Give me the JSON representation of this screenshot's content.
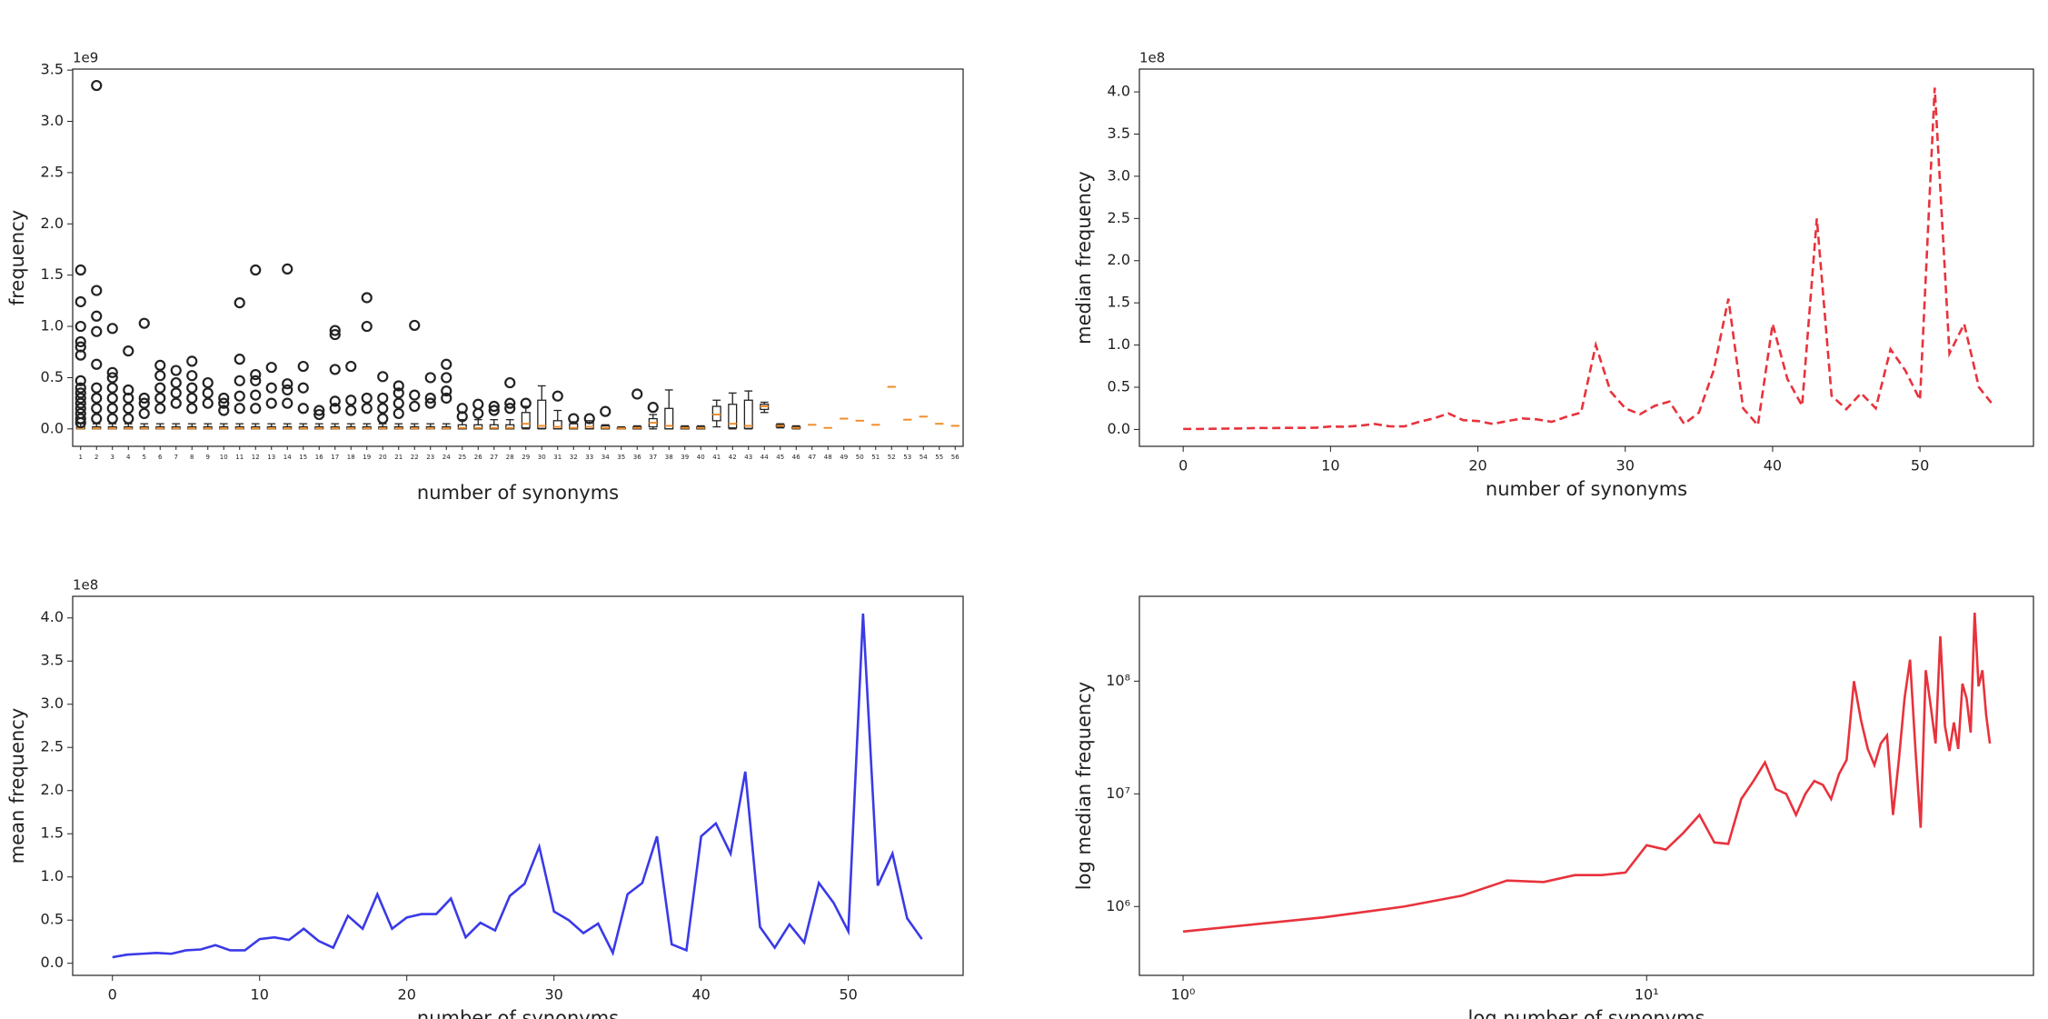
{
  "chart_data": [
    {
      "type": "box",
      "offset_label": "1e9",
      "ylabel": "frequency",
      "xlabel": "number of synonyms",
      "categories": [
        1,
        2,
        3,
        4,
        5,
        6,
        7,
        8,
        9,
        10,
        11,
        12,
        13,
        14,
        15,
        16,
        17,
        18,
        19,
        20,
        21,
        22,
        23,
        24,
        25,
        26,
        27,
        28,
        29,
        30,
        31,
        32,
        33,
        34,
        35,
        36,
        37,
        38,
        39,
        40,
        41,
        42,
        43,
        44,
        45,
        46,
        47,
        48,
        49,
        50,
        51,
        52,
        53,
        54,
        55,
        56
      ],
      "q1": [
        0,
        0,
        0,
        0,
        0,
        0,
        0,
        0,
        0,
        0,
        0,
        0,
        0,
        0,
        0,
        0,
        0,
        0,
        0,
        0,
        0,
        0,
        0,
        0,
        0,
        0,
        0,
        0,
        0.01,
        0.005,
        0,
        0,
        0,
        0,
        0,
        0,
        0.02,
        0,
        0,
        0,
        0.08,
        0.01,
        0.005,
        0.19,
        0.02,
        0.005,
        0.04,
        0.01,
        0.1,
        0.08,
        0.04,
        0.41,
        0.09,
        0.12,
        0.05,
        0.03
      ],
      "median": [
        0.005,
        0.005,
        0.005,
        0.005,
        0.005,
        0.005,
        0.005,
        0.005,
        0.005,
        0.005,
        0.005,
        0.005,
        0.005,
        0.005,
        0.005,
        0.005,
        0.005,
        0.005,
        0.005,
        0.005,
        0.005,
        0.005,
        0.005,
        0.005,
        0.01,
        0.01,
        0.01,
        0.01,
        0.05,
        0.03,
        0.02,
        0.01,
        0.02,
        0.01,
        0.005,
        0.01,
        0.06,
        0.03,
        0.01,
        0.01,
        0.14,
        0.05,
        0.03,
        0.22,
        0.03,
        0.01,
        0.04,
        0.01,
        0.1,
        0.08,
        0.04,
        0.41,
        0.09,
        0.12,
        0.05,
        0.03
      ],
      "q3": [
        0.02,
        0.02,
        0.02,
        0.02,
        0.02,
        0.02,
        0.02,
        0.02,
        0.02,
        0.02,
        0.02,
        0.02,
        0.02,
        0.02,
        0.02,
        0.02,
        0.02,
        0.02,
        0.02,
        0.02,
        0.02,
        0.02,
        0.02,
        0.02,
        0.04,
        0.04,
        0.04,
        0.04,
        0.16,
        0.28,
        0.08,
        0.05,
        0.06,
        0.03,
        0.01,
        0.02,
        0.1,
        0.2,
        0.02,
        0.02,
        0.22,
        0.24,
        0.28,
        0.24,
        0.04,
        0.02,
        0.04,
        0.01,
        0.1,
        0.08,
        0.04,
        0.41,
        0.09,
        0.12,
        0.05,
        0.03
      ],
      "whislo": [
        0,
        0,
        0,
        0,
        0,
        0,
        0,
        0,
        0,
        0,
        0,
        0,
        0,
        0,
        0,
        0,
        0,
        0,
        0,
        0,
        0,
        0,
        0,
        0,
        0,
        0,
        0,
        0,
        0,
        0,
        0,
        0,
        0,
        0,
        0,
        0,
        0,
        0,
        0,
        0,
        0.02,
        0,
        0,
        0.16,
        0.01,
        0,
        0.04,
        0.01,
        0.1,
        0.08,
        0.04,
        0.41,
        0.09,
        0.12,
        0.05,
        0.03
      ],
      "whishi": [
        0.05,
        0.05,
        0.05,
        0.05,
        0.05,
        0.05,
        0.05,
        0.05,
        0.05,
        0.05,
        0.05,
        0.05,
        0.05,
        0.05,
        0.05,
        0.05,
        0.05,
        0.05,
        0.05,
        0.05,
        0.05,
        0.05,
        0.05,
        0.05,
        0.09,
        0.09,
        0.09,
        0.09,
        0.22,
        0.42,
        0.18,
        0.07,
        0.08,
        0.04,
        0.02,
        0.03,
        0.14,
        0.38,
        0.03,
        0.03,
        0.28,
        0.35,
        0.37,
        0.26,
        0.05,
        0.03,
        0.04,
        0.01,
        0.1,
        0.08,
        0.04,
        0.41,
        0.09,
        0.12,
        0.05,
        0.03
      ],
      "fliers": [
        [
          1.55,
          1.24,
          1.0,
          0.85,
          0.8,
          0.72,
          0.47,
          0.4,
          0.35,
          0.3,
          0.25,
          0.2,
          0.15,
          0.1,
          0.06
        ],
        [
          3.35,
          1.35,
          1.1,
          0.95,
          0.63,
          0.4,
          0.3,
          0.2,
          0.1
        ],
        [
          0.98,
          0.55,
          0.5,
          0.4,
          0.3,
          0.2,
          0.1
        ],
        [
          0.76,
          0.38,
          0.3,
          0.2,
          0.1
        ],
        [
          1.03,
          0.3,
          0.25,
          0.15
        ],
        [
          0.62,
          0.52,
          0.4,
          0.3,
          0.2
        ],
        [
          0.57,
          0.45,
          0.35,
          0.25
        ],
        [
          0.66,
          0.52,
          0.4,
          0.3,
          0.2
        ],
        [
          0.45,
          0.35,
          0.25
        ],
        [
          0.3,
          0.25,
          0.18
        ],
        [
          1.23,
          0.68,
          0.47,
          0.32,
          0.2
        ],
        [
          1.55,
          0.53,
          0.47,
          0.33,
          0.2
        ],
        [
          0.6,
          0.4,
          0.25
        ],
        [
          1.56,
          0.44,
          0.38,
          0.25
        ],
        [
          0.61,
          0.4,
          0.2
        ],
        [
          0.18,
          0.14
        ],
        [
          0.96,
          0.92,
          0.58,
          0.27,
          0.2
        ],
        [
          0.61,
          0.28,
          0.18
        ],
        [
          1.28,
          1.0,
          0.3,
          0.2
        ],
        [
          0.51,
          0.3,
          0.2,
          0.1
        ],
        [
          0.42,
          0.35,
          0.25,
          0.15
        ],
        [
          1.01,
          0.33,
          0.22
        ],
        [
          0.5,
          0.3,
          0.25
        ],
        [
          0.63,
          0.5,
          0.37,
          0.3
        ],
        [
          0.2,
          0.12
        ],
        [
          0.24,
          0.15
        ],
        [
          0.22,
          0.18
        ],
        [
          0.45,
          0.25,
          0.2
        ],
        [
          0.25
        ],
        [],
        [
          0.32
        ],
        [
          0.1
        ],
        [
          0.1
        ],
        [
          0.17
        ],
        [],
        [
          0.34
        ],
        [
          0.21
        ],
        [],
        [],
        [],
        [],
        [],
        [],
        [],
        [],
        [],
        [],
        [],
        [],
        [],
        [],
        [],
        [],
        [],
        [],
        []
      ],
      "color": "#222222",
      "median_color": "#f28e2b",
      "ylim": [
        -0.17,
        3.51
      ],
      "yticks": [
        {
          "value": 0,
          "label": "0.0"
        },
        {
          "value": 0.5,
          "label": "0.5"
        },
        {
          "value": 1,
          "label": "1.0"
        },
        {
          "value": 1.5,
          "label": "1.5"
        },
        {
          "value": 2,
          "label": "2.0"
        },
        {
          "value": 2.5,
          "label": "2.5"
        },
        {
          "value": 3,
          "label": "3.0"
        },
        {
          "value": 3.5,
          "label": "3.5"
        }
      ]
    },
    {
      "type": "line",
      "offset_label": "1e8",
      "ylabel": "median frequency",
      "xlabel": "number of synonyms",
      "color": "#e8323c",
      "linestyle": "dashed",
      "x": [
        0,
        1,
        2,
        3,
        4,
        5,
        6,
        7,
        8,
        9,
        10,
        11,
        12,
        13,
        14,
        15,
        16,
        17,
        18,
        19,
        20,
        21,
        22,
        23,
        24,
        25,
        26,
        27,
        28,
        29,
        30,
        31,
        32,
        33,
        34,
        35,
        36,
        37,
        38,
        39,
        40,
        41,
        42,
        43,
        44,
        45,
        46,
        47,
        48,
        49,
        50,
        51,
        52,
        53,
        54,
        55
      ],
      "values": [
        0.006,
        0.006,
        0.008,
        0.01,
        0.0125,
        0.017,
        0.0165,
        0.019,
        0.019,
        0.02,
        0.035,
        0.032,
        0.045,
        0.065,
        0.037,
        0.036,
        0.09,
        0.13,
        0.19,
        0.11,
        0.1,
        0.065,
        0.1,
        0.13,
        0.12,
        0.09,
        0.15,
        0.2,
        1.0,
        0.45,
        0.25,
        0.18,
        0.28,
        0.33,
        0.065,
        0.2,
        0.7,
        1.55,
        0.25,
        0.05,
        1.25,
        0.6,
        0.28,
        2.5,
        0.4,
        0.24,
        0.43,
        0.25,
        0.95,
        0.7,
        0.35,
        4.05,
        0.9,
        1.25,
        0.5,
        0.28
      ],
      "xlim": [
        -2.97,
        57.7
      ],
      "xticks": [
        0,
        10,
        20,
        30,
        40,
        50
      ],
      "ylim": [
        -0.2,
        4.27
      ],
      "yticks": [
        {
          "value": 0,
          "label": "0.0"
        },
        {
          "value": 0.5,
          "label": "0.5"
        },
        {
          "value": 1,
          "label": "1.0"
        },
        {
          "value": 1.5,
          "label": "1.5"
        },
        {
          "value": 2,
          "label": "2.0"
        },
        {
          "value": 2.5,
          "label": "2.5"
        },
        {
          "value": 3,
          "label": "3.0"
        },
        {
          "value": 3.5,
          "label": "3.5"
        },
        {
          "value": 4,
          "label": "4.0"
        }
      ]
    },
    {
      "type": "line",
      "offset_label": "1e8",
      "ylabel": "mean frequency",
      "xlabel": "number of synonyms",
      "color": "#3a3ae8",
      "linestyle": "solid",
      "x": [
        0,
        1,
        2,
        3,
        4,
        5,
        6,
        7,
        8,
        9,
        10,
        11,
        12,
        13,
        14,
        15,
        16,
        17,
        18,
        19,
        20,
        21,
        22,
        23,
        24,
        25,
        26,
        27,
        28,
        29,
        30,
        31,
        32,
        33,
        34,
        35,
        36,
        37,
        38,
        39,
        40,
        41,
        42,
        43,
        44,
        45,
        46,
        47,
        48,
        49,
        50,
        51,
        52,
        53,
        54,
        55
      ],
      "values": [
        0.07,
        0.1,
        0.11,
        0.12,
        0.11,
        0.15,
        0.16,
        0.21,
        0.15,
        0.15,
        0.28,
        0.3,
        0.27,
        0.4,
        0.26,
        0.18,
        0.55,
        0.4,
        0.8,
        0.4,
        0.53,
        0.57,
        0.57,
        0.75,
        0.3,
        0.47,
        0.38,
        0.78,
        0.92,
        1.35,
        0.6,
        0.5,
        0.35,
        0.46,
        0.12,
        0.8,
        0.93,
        1.47,
        0.22,
        0.15,
        1.47,
        1.62,
        1.27,
        2.22,
        0.42,
        0.18,
        0.45,
        0.24,
        0.93,
        0.7,
        0.37,
        4.05,
        0.9,
        1.27,
        0.52,
        0.28
      ],
      "xlim": [
        -2.7,
        57.8
      ],
      "xticks": [
        0,
        10,
        20,
        30,
        40,
        50
      ],
      "ylim": [
        -0.14,
        4.25
      ],
      "yticks": [
        {
          "value": 0,
          "label": "0.0"
        },
        {
          "value": 0.5,
          "label": "0.5"
        },
        {
          "value": 1,
          "label": "1.0"
        },
        {
          "value": 1.5,
          "label": "1.5"
        },
        {
          "value": 2,
          "label": "2.0"
        },
        {
          "value": 2.5,
          "label": "2.5"
        },
        {
          "value": 3,
          "label": "3.0"
        },
        {
          "value": 3.5,
          "label": "3.5"
        },
        {
          "value": 4,
          "label": "4.0"
        }
      ]
    },
    {
      "type": "line",
      "ylabel": "log median frequency",
      "xlabel": "log number of synonyms",
      "color": "#e8323c",
      "linestyle": "solid",
      "xscale": "log",
      "yscale": "log",
      "x": [
        1,
        2,
        3,
        4,
        5,
        6,
        7,
        8,
        9,
        10,
        11,
        12,
        13,
        14,
        15,
        16,
        17,
        18,
        19,
        20,
        21,
        22,
        23,
        24,
        25,
        26,
        27,
        28,
        29,
        30,
        31,
        32,
        33,
        34,
        35,
        36,
        37,
        38,
        39,
        40,
        41,
        42,
        43,
        44,
        45,
        46,
        47,
        48,
        49,
        50,
        51,
        52,
        53,
        54,
        55
      ],
      "values": [
        600000,
        800000,
        1000000,
        1250000,
        1700000,
        1650000,
        1900000,
        1900000,
        2000000,
        3500000,
        3200000,
        4500000,
        6500000,
        3700000,
        3600000,
        9000000,
        13000000,
        19000000,
        11000000,
        10000000,
        6500000,
        10000000,
        13000000,
        12000000,
        9000000,
        15000000,
        20000000,
        100000000,
        45000000,
        25000000,
        18000000,
        28000000,
        33000000,
        6500000,
        20000000,
        70000000,
        155000000,
        25000000,
        5000000,
        125000000,
        60000000,
        28000000,
        250000000,
        40000000,
        24000000,
        43000000,
        25000000,
        95000000,
        70000000,
        35000000,
        405000000,
        90000000,
        125000000,
        50000000,
        28000000
      ],
      "xlim": [
        0.805,
        68.3
      ],
      "xticks": [
        {
          "value": 1,
          "label": "10⁰"
        },
        {
          "value": 10,
          "label": "10¹"
        }
      ],
      "ylim": [
        245000,
        566000000
      ],
      "yticks": [
        {
          "value": 1000000,
          "label": "10⁶"
        },
        {
          "value": 10000000,
          "label": "10⁷"
        },
        {
          "value": 100000000,
          "label": "10⁸"
        }
      ]
    }
  ]
}
